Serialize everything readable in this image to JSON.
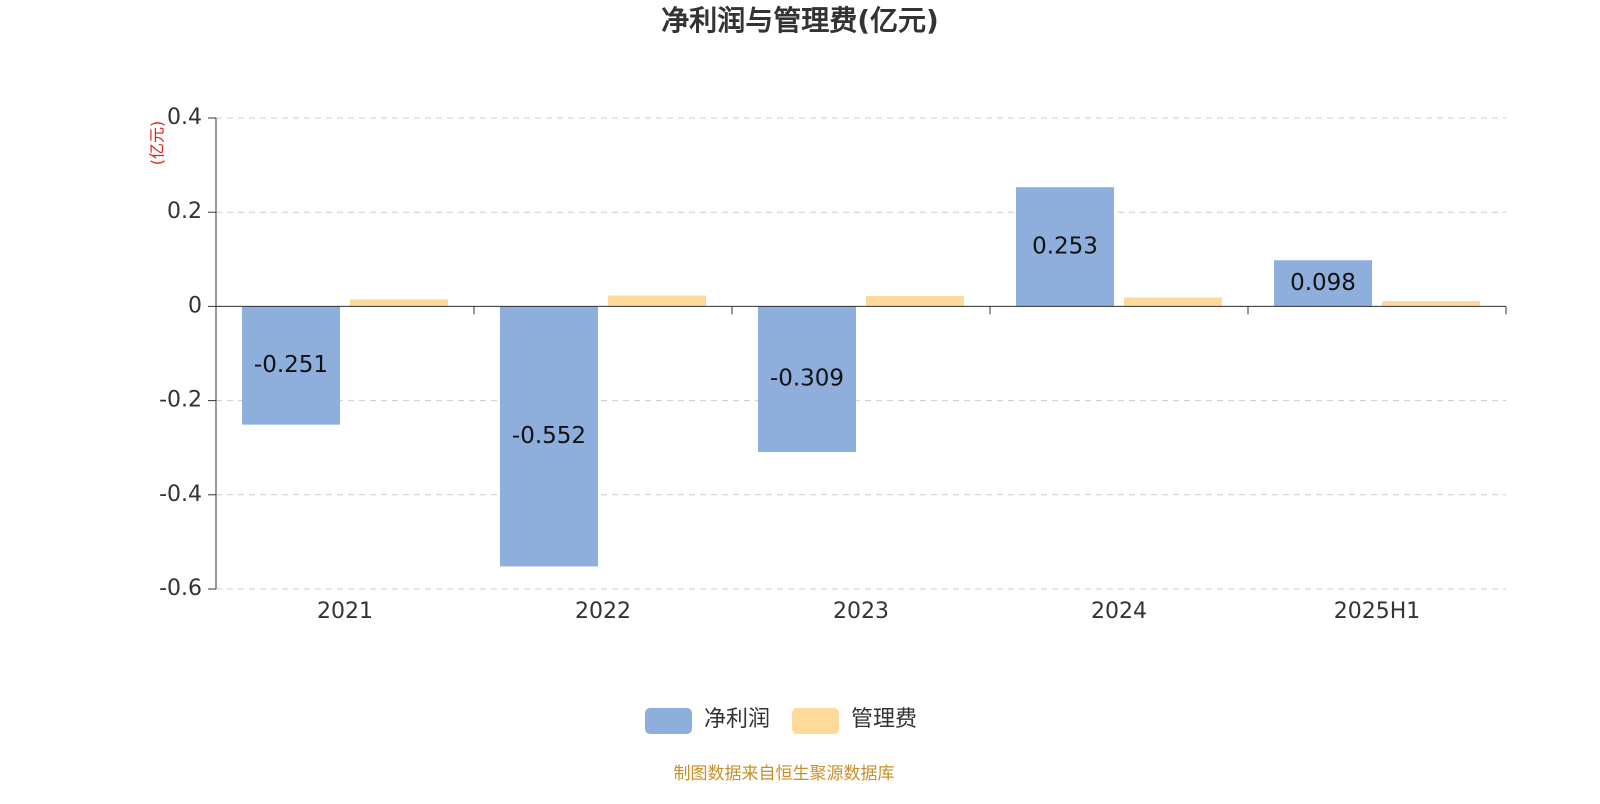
{
  "chart_data": {
    "type": "bar",
    "title": "净利润与管理费(亿元)",
    "y_unit": "(亿元)",
    "categories": [
      "2021",
      "2022",
      "2023",
      "2024",
      "2025H1"
    ],
    "series": [
      {
        "name": "净利润",
        "color": "#8eaedb",
        "labels": true,
        "values": [
          -0.251,
          -0.552,
          -0.309,
          0.253,
          0.098
        ]
      },
      {
        "name": "管理费",
        "color": "#fdd99a",
        "labels": false,
        "values": [
          0.015,
          0.023,
          0.022,
          0.019,
          0.011
        ]
      }
    ],
    "ylim": [
      -0.6,
      0.4
    ],
    "yticks": [
      0.4,
      0.2,
      0,
      -0.2,
      -0.4,
      -0.6
    ],
    "grid": true,
    "source": "制图数据来自恒生聚源数据库"
  }
}
